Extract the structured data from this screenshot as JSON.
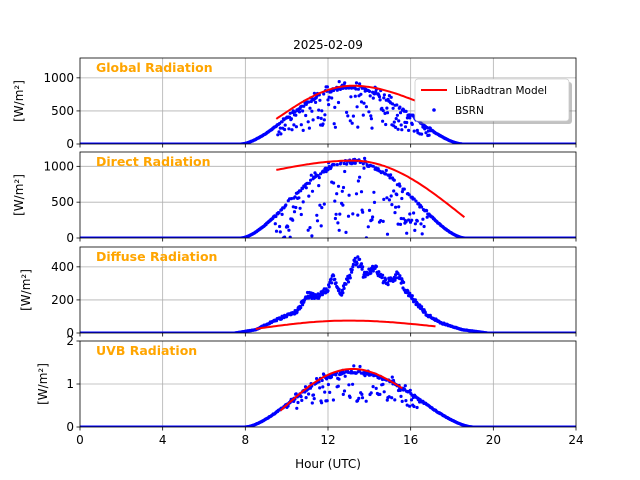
{
  "figure": {
    "title": "2025-02-09",
    "xlabel": "Hour (UTC)",
    "xlim": [
      0,
      24
    ],
    "xticks": [
      0,
      4,
      8,
      12,
      16,
      20,
      24
    ],
    "grid": true,
    "legend_placement": "top-right of first panel",
    "colors": {
      "model": "#ff0000",
      "obs": "#0000ff",
      "panel_label": "#ffa500",
      "grid": "#b0b0b0"
    },
    "legend": [
      {
        "label": "LibRadtran Model",
        "kind": "line",
        "color": "#ff0000"
      },
      {
        "label": "BSRN",
        "kind": "dots",
        "color": "#0000ff"
      }
    ]
  },
  "chart_data": [
    {
      "type": "scatter",
      "panel_label": "Global Radiation",
      "ylabel": "[W/m²]",
      "ylim": [
        0,
        1300
      ],
      "yticks": [
        0,
        500,
        1000
      ],
      "model": {
        "x_range": [
          9.5,
          16.5
        ],
        "peak_hour": 13.2,
        "peak_value": 880,
        "start_value": 380,
        "end_value": 620
      },
      "obs": {
        "start": 7.8,
        "end": 18.5,
        "peak_hour": 13.0,
        "envelope": 860,
        "scatter_min": 250,
        "noise_from": 9.5,
        "noise_to": 17.0
      }
    },
    {
      "type": "scatter",
      "panel_label": "Direct Radiation",
      "ylabel": "[W/m²]",
      "ylim": [
        0,
        1200
      ],
      "yticks": [
        0,
        500,
        1000
      ],
      "model": {
        "x_range": [
          9.5,
          18.6
        ],
        "peak_hour": 13.2,
        "peak_value": 1080,
        "start_value": 950,
        "end_value": 290
      },
      "obs": {
        "start": 7.8,
        "end": 18.6,
        "peak_hour": 13.2,
        "envelope": 1080,
        "scatter_min": 0,
        "noise_from": 9.4,
        "noise_to": 16.8
      }
    },
    {
      "type": "scatter",
      "panel_label": "Diffuse Radiation",
      "ylabel": "[W/m²]",
      "ylim": [
        0,
        520
      ],
      "yticks": [
        0,
        200,
        400
      ],
      "model": {
        "x_range": [
          8.5,
          17.2
        ],
        "peak_hour": 13.0,
        "peak_value": 75,
        "start_value": 25,
        "end_value": 40
      },
      "obs": {
        "start": 7.5,
        "end": 19.7,
        "profile": [
          [
            7.5,
            0
          ],
          [
            8.5,
            20
          ],
          [
            9.5,
            80
          ],
          [
            10.5,
            130
          ],
          [
            11.0,
            230
          ],
          [
            11.5,
            220
          ],
          [
            12.0,
            270
          ],
          [
            12.3,
            340
          ],
          [
            12.6,
            230
          ],
          [
            13.0,
            330
          ],
          [
            13.4,
            450
          ],
          [
            13.8,
            340
          ],
          [
            14.2,
            400
          ],
          [
            14.6,
            330
          ],
          [
            15.0,
            310
          ],
          [
            15.4,
            350
          ],
          [
            15.8,
            250
          ],
          [
            16.3,
            180
          ],
          [
            16.8,
            110
          ],
          [
            17.5,
            60
          ],
          [
            18.5,
            20
          ],
          [
            19.7,
            0
          ]
        ]
      }
    },
    {
      "type": "scatter",
      "panel_label": "UVB Radiation",
      "ylabel": "[W/m²]",
      "ylim": [
        0,
        2
      ],
      "yticks": [
        0,
        1,
        2
      ],
      "model": {
        "x_range": [
          9.7,
          15.6
        ],
        "peak_hour": 13.2,
        "peak_value": 1.35,
        "start_value": 0.38,
        "end_value": 0.9
      },
      "obs": {
        "start": 8.0,
        "end": 19.0,
        "peak_hour": 13.2,
        "envelope": 1.3,
        "scatter_min": 0.6,
        "noise_from": 10.0,
        "noise_to": 16.5
      }
    }
  ]
}
